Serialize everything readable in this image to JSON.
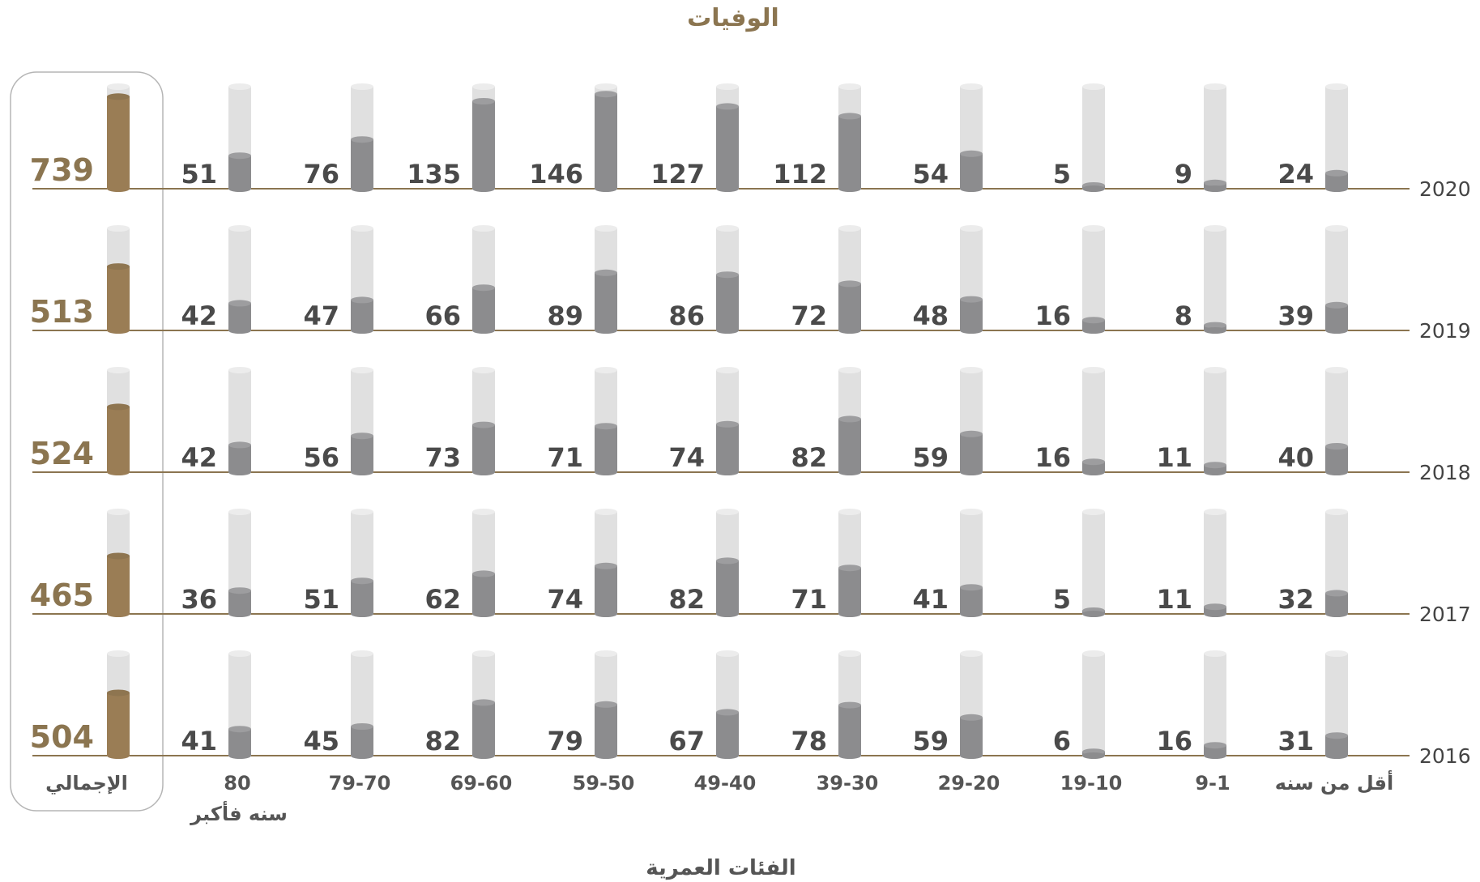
{
  "chart_data": {
    "type": "bar",
    "title": "الوفيات",
    "xlabel": "الفئات العمرية",
    "categories": [
      "أقل من سنه",
      "9-1",
      "19-10",
      "29-20",
      "39-30",
      "49-40",
      "59-50",
      "69-60",
      "79-70",
      "80"
    ],
    "category_extra": "سنه فأكبر",
    "total_label": "الإجمالي",
    "max_value": 150,
    "series": [
      {
        "name": "2020",
        "values": [
          24,
          9,
          5,
          54,
          112,
          127,
          146,
          135,
          76,
          51
        ],
        "total": 739
      },
      {
        "name": "2019",
        "values": [
          39,
          8,
          16,
          48,
          72,
          86,
          89,
          66,
          47,
          42
        ],
        "total": 513
      },
      {
        "name": "2018",
        "values": [
          40,
          11,
          16,
          59,
          82,
          74,
          71,
          73,
          56,
          42
        ],
        "total": 524
      },
      {
        "name": "2017",
        "values": [
          32,
          11,
          5,
          41,
          71,
          82,
          74,
          62,
          51,
          36
        ],
        "total": 465
      },
      {
        "name": "2016",
        "values": [
          31,
          16,
          6,
          59,
          78,
          67,
          79,
          82,
          45,
          41
        ],
        "total": 504
      }
    ],
    "total_max": 780,
    "colors": {
      "bar": "#8c8c8e",
      "track": "#e0e0e0",
      "total": "#9a7d55",
      "baseline": "#8b7550",
      "text": "#4a4a4a",
      "accent_text": "#8b7550"
    }
  }
}
